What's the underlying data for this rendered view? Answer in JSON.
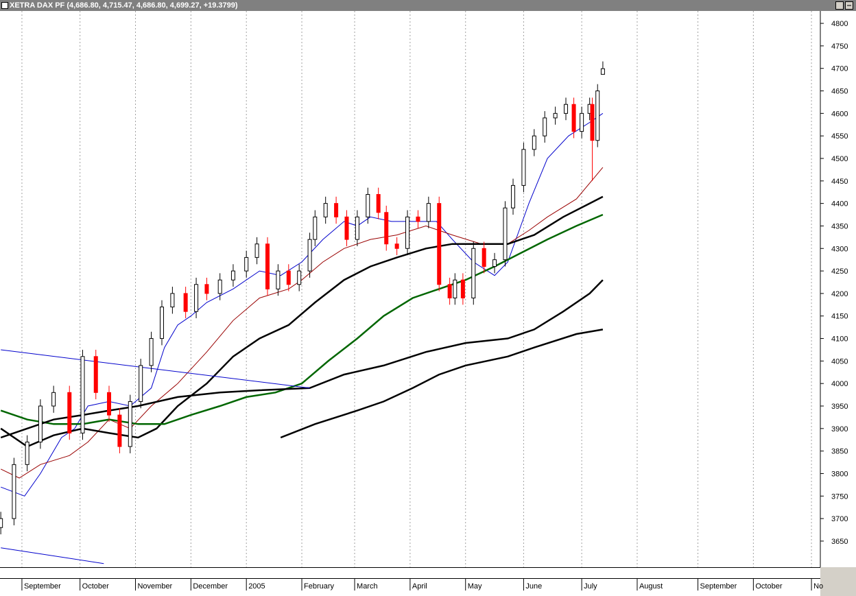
{
  "chart_data": {
    "type": "candlestick",
    "title": "XETRA DAX PF (4,686.80, 4,715.47, 4,686.80, 4,699.27, +19.3799)",
    "candles": {
      "x": [
        -8,
        -3,
        2,
        7,
        12,
        18,
        23,
        28,
        33,
        37,
        41,
        45,
        49,
        53,
        57,
        62,
        66,
        70,
        75,
        80,
        85,
        89,
        93,
        97,
        101,
        105,
        109,
        111,
        115,
        119,
        123,
        127,
        131,
        135,
        138,
        142,
        146,
        150,
        154,
        158,
        162,
        164,
        167,
        171,
        175,
        179,
        183,
        186,
        190,
        194,
        198,
        202,
        206,
        209,
        212,
        215,
        216,
        218,
        220
      ],
      "open": [
        3680,
        3700,
        3820,
        3870,
        3950,
        3980,
        3890,
        4060,
        3980,
        3930,
        3860,
        3960,
        4040,
        4100,
        4170,
        4200,
        4160,
        4220,
        4200,
        4230,
        4250,
        4280,
        4310,
        4210,
        4250,
        4220,
        4250,
        4320,
        4370,
        4400,
        4370,
        4320,
        4370,
        4420,
        4380,
        4310,
        4300,
        4370,
        4360,
        4400,
        4220,
        4190,
        4230,
        4190,
        4300,
        4260,
        4275,
        4390,
        4440,
        4520,
        4550,
        4590,
        4600,
        4620,
        4560,
        4600,
        4620,
        4540,
        4686.8
      ],
      "high": [
        3715,
        3835,
        3885,
        3965,
        3995,
        3995,
        4075,
        4075,
        3995,
        3945,
        3975,
        4055,
        4115,
        4185,
        4215,
        4215,
        4235,
        4235,
        4245,
        4265,
        4295,
        4325,
        4325,
        4265,
        4265,
        4265,
        4335,
        4385,
        4415,
        4415,
        4385,
        4385,
        4435,
        4435,
        4395,
        4325,
        4385,
        4385,
        4415,
        4415,
        4235,
        4245,
        4245,
        4315,
        4315,
        4290,
        4405,
        4455,
        4535,
        4565,
        4605,
        4615,
        4635,
        4635,
        4615,
        4635,
        4635,
        4665,
        4715.47
      ],
      "low": [
        3665,
        3685,
        3805,
        3855,
        3935,
        3875,
        3875,
        3965,
        3915,
        3845,
        3845,
        3945,
        4025,
        4085,
        4155,
        4145,
        4145,
        4185,
        4185,
        4215,
        4235,
        4265,
        4195,
        4195,
        4205,
        4205,
        4235,
        4305,
        4355,
        4355,
        4305,
        4305,
        4355,
        4365,
        4295,
        4285,
        4285,
        4345,
        4345,
        4205,
        4175,
        4175,
        4175,
        4175,
        4245,
        4245,
        4260,
        4375,
        4425,
        4505,
        4535,
        4575,
        4585,
        4545,
        4545,
        4585,
        4450,
        4525,
        4686.8
      ],
      "close": [
        3700,
        3820,
        3870,
        3950,
        3980,
        3890,
        4060,
        3980,
        3930,
        3860,
        3960,
        4040,
        4100,
        4170,
        4200,
        4160,
        4220,
        4200,
        4230,
        4250,
        4280,
        4310,
        4210,
        4250,
        4220,
        4250,
        4320,
        4370,
        4400,
        4370,
        4320,
        4370,
        4420,
        4380,
        4310,
        4300,
        4370,
        4360,
        4400,
        4220,
        4190,
        4230,
        4190,
        4300,
        4260,
        4275,
        4390,
        4440,
        4520,
        4550,
        4590,
        4600,
        4620,
        4560,
        4600,
        4620,
        4540,
        4650,
        4699.27
      ]
    },
    "up_color": "#ffffff",
    "down_color": "#ff0000",
    "lines": [
      {
        "color": "#0000cc",
        "x": [
          -8,
          1,
          7,
          15,
          20,
          25,
          33,
          41,
          49,
          54,
          59,
          64,
          70,
          80,
          90,
          98,
          106,
          114,
          122,
          127,
          132,
          140,
          148,
          157,
          163,
          171,
          179,
          184,
          192,
          199,
          207,
          215,
          220
        ],
        "values": [
          3770,
          3750,
          3800,
          3880,
          3900,
          3950,
          3960,
          3950,
          3990,
          4080,
          4130,
          4150,
          4180,
          4210,
          4250,
          4240,
          4270,
          4320,
          4360,
          4350,
          4370,
          4360,
          4360,
          4360,
          4320,
          4270,
          4240,
          4270,
          4400,
          4500,
          4550,
          4580,
          4600
        ]
      },
      {
        "color": "#990000",
        "x": [
          -8,
          -1,
          7,
          18,
          25,
          33,
          41,
          49,
          59,
          70,
          80,
          90,
          101,
          106,
          114,
          122,
          132,
          142,
          153,
          163,
          174,
          184,
          192,
          199,
          210,
          220
        ],
        "values": [
          3810,
          3790,
          3820,
          3840,
          3870,
          3920,
          3900,
          3950,
          4000,
          4070,
          4140,
          4190,
          4210,
          4230,
          4270,
          4300,
          4320,
          4330,
          4350,
          4330,
          4310,
          4310,
          4340,
          4370,
          4410,
          4480
        ]
      },
      {
        "color": "#000000",
        "x": [
          -8,
          2,
          12,
          23,
          33,
          44,
          51,
          59,
          70,
          80,
          90,
          101,
          111,
          122,
          132,
          142,
          153,
          163,
          174,
          184,
          194,
          205,
          215,
          220
        ],
        "values": [
          3900,
          3860,
          3885,
          3900,
          3890,
          3880,
          3900,
          3950,
          4000,
          4060,
          4100,
          4130,
          4180,
          4230,
          4260,
          4280,
          4300,
          4310,
          4310,
          4310,
          4330,
          4370,
          4400,
          4415
        ]
      },
      {
        "color": "#006600",
        "x": [
          -8,
          2,
          12,
          23,
          33,
          44,
          54,
          64,
          75,
          85,
          96,
          106,
          116,
          127,
          137,
          148,
          158,
          168,
          179,
          189,
          199,
          210,
          220
        ],
        "values": [
          3940,
          3920,
          3910,
          3910,
          3920,
          3910,
          3910,
          3930,
          3950,
          3970,
          3980,
          4000,
          4050,
          4100,
          4150,
          4190,
          4210,
          4230,
          4260,
          4290,
          4320,
          4350,
          4375
        ]
      },
      {
        "color": "#000000",
        "x": [
          -8,
          2,
          12,
          23,
          33,
          44,
          59,
          75,
          90,
          109,
          122,
          137,
          153,
          168,
          184,
          194,
          205,
          215,
          220
        ],
        "values": [
          3880,
          3900,
          3920,
          3930,
          3940,
          3950,
          3970,
          3980,
          3985,
          3990,
          4020,
          4040,
          4070,
          4090,
          4100,
          4120,
          4160,
          4200,
          4230
        ]
      },
      {
        "color": "#000000",
        "x": [
          98,
          111,
          127,
          137,
          148,
          158,
          168,
          184,
          194,
          210,
          220
        ],
        "values": [
          3880,
          3910,
          3940,
          3960,
          3990,
          4020,
          4040,
          4060,
          4080,
          4110,
          4120
        ]
      },
      {
        "color": "#0000cc",
        "x": [
          -8,
          109
        ],
        "values": [
          4075,
          3990
        ]
      },
      {
        "color": "#0000cc",
        "x": [
          -8,
          31
        ],
        "values": [
          3635,
          3600
        ]
      }
    ],
    "xlim": [
      -8.3,
      302.1
    ],
    "ylim": [
      3592,
      4826
    ],
    "xticks": [
      {
        "value": 0,
        "label": "September"
      },
      {
        "value": 22,
        "label": "October"
      },
      {
        "value": 43,
        "label": "November"
      },
      {
        "value": 64,
        "label": "December"
      },
      {
        "value": 85,
        "label": "2005"
      },
      {
        "value": 106,
        "label": "February"
      },
      {
        "value": 126,
        "label": "March"
      },
      {
        "value": 147,
        "label": "April"
      },
      {
        "value": 168,
        "label": "May"
      },
      {
        "value": 190,
        "label": "June"
      },
      {
        "value": 212,
        "label": "July"
      },
      {
        "value": 233,
        "label": "August"
      },
      {
        "value": 256,
        "label": "September"
      },
      {
        "value": 277,
        "label": "October"
      },
      {
        "value": 299,
        "label": "No"
      }
    ],
    "yticks": [
      3650,
      3700,
      3750,
      3800,
      3850,
      3900,
      3950,
      4000,
      4050,
      4100,
      4150,
      4200,
      4250,
      4300,
      4350,
      4400,
      4450,
      4500,
      4550,
      4600,
      4650,
      4700,
      4750,
      4800
    ],
    "grid": true
  }
}
